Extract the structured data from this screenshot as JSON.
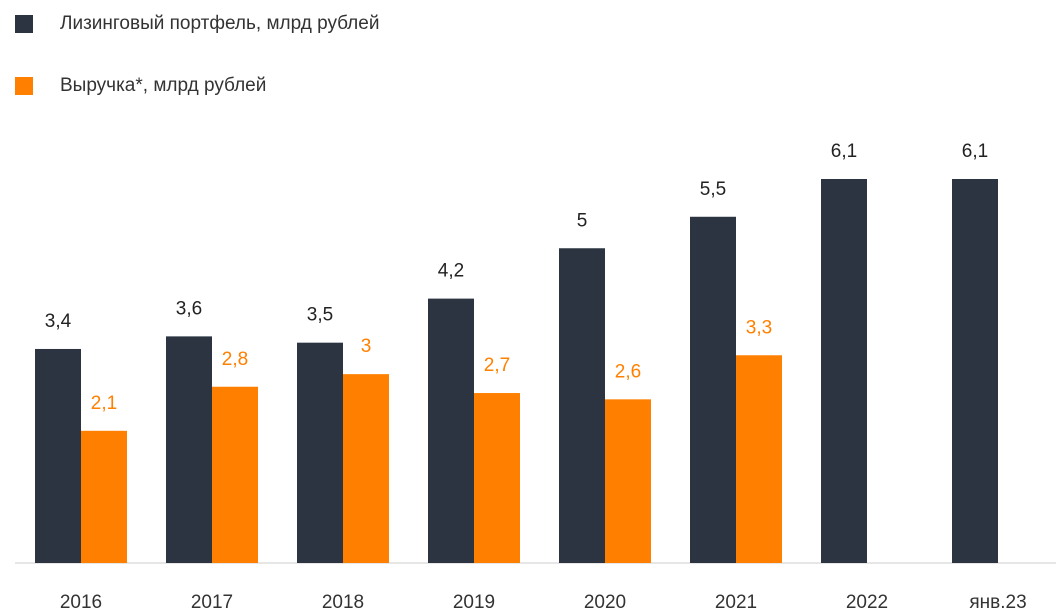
{
  "chart_data": {
    "type": "bar",
    "categories": [
      "2016",
      "2017",
      "2018",
      "2019",
      "2020",
      "2021",
      "2022",
      "янв.23"
    ],
    "series": [
      {
        "name": "Лизинговый портфель, млрд рублей",
        "color": "#2b3440",
        "values": [
          3.4,
          3.6,
          3.5,
          4.2,
          5,
          5.5,
          6.1,
          6.1
        ],
        "value_labels": [
          "3,4",
          "3,6",
          "3,5",
          "4,2",
          "5",
          "5,5",
          "6,1",
          "6,1"
        ]
      },
      {
        "name": "Выручка*, млрд рублей",
        "color": "#ff8000",
        "values": [
          2.1,
          2.8,
          3,
          2.7,
          2.6,
          3.3,
          null,
          null
        ],
        "value_labels": [
          "2,1",
          "2,8",
          "3",
          "2,7",
          "2,6",
          "3,3",
          null,
          null
        ]
      }
    ],
    "legend": "top-left"
  }
}
